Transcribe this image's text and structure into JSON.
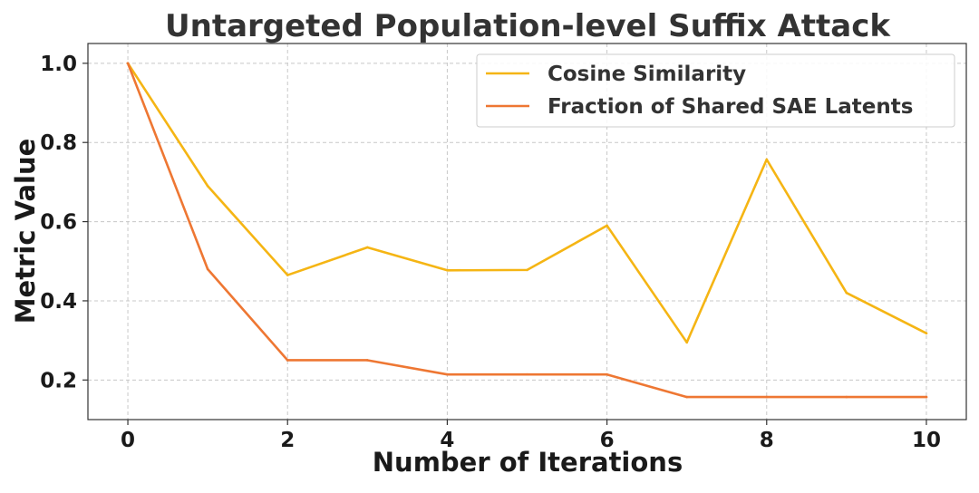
{
  "chart_data": {
    "type": "line",
    "title": "Untargeted Population-level Suffix Attack",
    "xlabel": "Number of Iterations",
    "ylabel": "Metric Value",
    "x": [
      0,
      1,
      2,
      3,
      4,
      5,
      6,
      7,
      8,
      9,
      10
    ],
    "xlim": [
      -0.5,
      10.5
    ],
    "ylim": [
      0.1,
      1.05
    ],
    "xticks": [
      0,
      2,
      4,
      6,
      8,
      10
    ],
    "xtick_labels": [
      "0",
      "2",
      "4",
      "6",
      "8",
      "10"
    ],
    "yticks": [
      0.2,
      0.4,
      0.6,
      0.8,
      1.0
    ],
    "ytick_labels": [
      "0.2",
      "0.4",
      "0.6",
      "0.8",
      "1.0"
    ],
    "grid": true,
    "legend_position": "top-right",
    "series": [
      {
        "name": "Cosine Similarity",
        "color": "#f5b514",
        "values": [
          1.0,
          0.69,
          0.465,
          0.535,
          0.477,
          0.478,
          0.59,
          0.295,
          0.757,
          0.42,
          0.318
        ]
      },
      {
        "name": "Fraction of Shared SAE Latents",
        "color": "#ee7733",
        "values": [
          1.0,
          0.48,
          0.25,
          0.25,
          0.214,
          0.214,
          0.214,
          0.157,
          0.157,
          0.157,
          0.157
        ]
      }
    ]
  }
}
